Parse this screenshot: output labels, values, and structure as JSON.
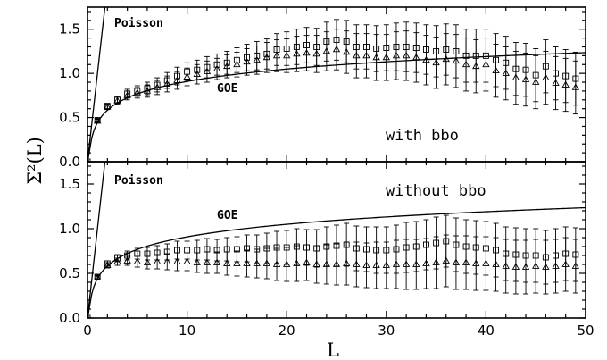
{
  "chart_data": [
    {
      "type": "scatter",
      "panel": "top",
      "xlim": [
        0,
        50
      ],
      "ylim": [
        0,
        1.75
      ],
      "xticks": [
        0,
        10,
        20,
        30,
        40,
        50
      ],
      "yticks": [
        0.0,
        0.5,
        1.0,
        1.5
      ],
      "xlabel": "L",
      "ylabel": "Σ²(L)",
      "annotation": "with bbo",
      "curve_labels": {
        "poisson": "Poisson",
        "goe": "GOE"
      },
      "curves": [
        {
          "name": "Poisson",
          "type": "line",
          "formula": "Sigma2 = L"
        },
        {
          "name": "GOE",
          "type": "line",
          "formula": "GOE number variance"
        }
      ],
      "series": [
        {
          "marker": "square",
          "x": [
            0,
            1,
            2,
            3,
            4,
            5,
            6,
            7,
            8,
            9,
            10,
            11,
            12,
            13,
            14,
            15,
            16,
            17,
            18,
            19,
            20,
            21,
            22,
            23,
            24,
            25,
            26,
            27,
            28,
            29,
            30,
            31,
            32,
            33,
            34,
            35,
            36,
            37,
            38,
            39,
            40,
            41,
            42,
            43,
            44,
            45,
            46,
            47,
            48,
            49
          ],
          "y": [
            0,
            0.47,
            0.63,
            0.7,
            0.77,
            0.8,
            0.83,
            0.87,
            0.92,
            0.97,
            1.02,
            1.04,
            1.07,
            1.1,
            1.12,
            1.15,
            1.18,
            1.2,
            1.22,
            1.27,
            1.28,
            1.3,
            1.32,
            1.3,
            1.36,
            1.38,
            1.36,
            1.3,
            1.3,
            1.28,
            1.29,
            1.3,
            1.3,
            1.29,
            1.27,
            1.25,
            1.27,
            1.25,
            1.2,
            1.2,
            1.2,
            1.15,
            1.12,
            1.05,
            1.04,
            0.98,
            1.08,
            1.0,
            0.97,
            0.94
          ],
          "err": [
            0,
            0.02,
            0.03,
            0.04,
            0.05,
            0.06,
            0.07,
            0.08,
            0.09,
            0.1,
            0.1,
            0.11,
            0.12,
            0.12,
            0.13,
            0.14,
            0.15,
            0.16,
            0.17,
            0.18,
            0.19,
            0.2,
            0.2,
            0.21,
            0.22,
            0.23,
            0.24,
            0.25,
            0.25,
            0.26,
            0.26,
            0.27,
            0.28,
            0.28,
            0.28,
            0.29,
            0.29,
            0.3,
            0.3,
            0.3,
            0.3,
            0.3,
            0.3,
            0.3,
            0.3,
            0.3,
            0.3,
            0.3,
            0.3,
            0.3
          ]
        },
        {
          "marker": "triangle",
          "x": [
            0,
            1,
            2,
            3,
            4,
            5,
            6,
            7,
            8,
            9,
            10,
            11,
            12,
            13,
            14,
            15,
            16,
            17,
            18,
            19,
            20,
            21,
            22,
            23,
            24,
            25,
            26,
            27,
            28,
            29,
            30,
            31,
            32,
            33,
            34,
            35,
            36,
            37,
            38,
            39,
            40,
            41,
            42,
            43,
            44,
            45,
            46,
            47,
            48,
            49
          ],
          "y": [
            0,
            0.46,
            0.62,
            0.69,
            0.75,
            0.78,
            0.8,
            0.84,
            0.88,
            0.92,
            0.96,
            0.99,
            1.02,
            1.05,
            1.08,
            1.1,
            1.13,
            1.15,
            1.18,
            1.2,
            1.2,
            1.22,
            1.23,
            1.22,
            1.25,
            1.27,
            1.24,
            1.2,
            1.2,
            1.18,
            1.18,
            1.2,
            1.2,
            1.18,
            1.15,
            1.12,
            1.16,
            1.14,
            1.1,
            1.08,
            1.1,
            1.03,
            1.0,
            0.95,
            0.93,
            0.9,
            0.95,
            0.89,
            0.87,
            0.84
          ],
          "err": [
            0,
            0.02,
            0.03,
            0.04,
            0.05,
            0.06,
            0.07,
            0.08,
            0.09,
            0.1,
            0.1,
            0.11,
            0.12,
            0.12,
            0.13,
            0.14,
            0.15,
            0.16,
            0.17,
            0.18,
            0.19,
            0.2,
            0.2,
            0.21,
            0.22,
            0.23,
            0.24,
            0.25,
            0.25,
            0.26,
            0.26,
            0.27,
            0.28,
            0.28,
            0.28,
            0.29,
            0.29,
            0.3,
            0.3,
            0.3,
            0.3,
            0.3,
            0.3,
            0.3,
            0.3,
            0.3,
            0.3,
            0.3,
            0.3,
            0.3
          ]
        }
      ]
    },
    {
      "type": "scatter",
      "panel": "bottom",
      "xlim": [
        0,
        50
      ],
      "ylim": [
        0,
        1.75
      ],
      "xticks": [
        0,
        10,
        20,
        30,
        40,
        50
      ],
      "yticks": [
        0.0,
        0.5,
        1.0,
        1.5
      ],
      "xlabel": "L",
      "ylabel": "Σ²(L)",
      "annotation": "without bbo",
      "curve_labels": {
        "poisson": "Poisson",
        "goe": "GOE"
      },
      "curves": [
        {
          "name": "Poisson",
          "type": "line",
          "formula": "Sigma2 = L"
        },
        {
          "name": "GOE",
          "type": "line",
          "formula": "GOE number variance"
        }
      ],
      "series": [
        {
          "marker": "square",
          "x": [
            0,
            1,
            2,
            3,
            4,
            5,
            6,
            7,
            8,
            9,
            10,
            11,
            12,
            13,
            14,
            15,
            16,
            17,
            18,
            19,
            20,
            21,
            22,
            23,
            24,
            25,
            26,
            27,
            28,
            29,
            30,
            31,
            32,
            33,
            34,
            35,
            36,
            37,
            38,
            39,
            40,
            41,
            42,
            43,
            44,
            45,
            46,
            47,
            48,
            49
          ],
          "y": [
            0,
            0.46,
            0.61,
            0.67,
            0.7,
            0.72,
            0.72,
            0.73,
            0.74,
            0.76,
            0.76,
            0.76,
            0.77,
            0.76,
            0.77,
            0.77,
            0.78,
            0.77,
            0.78,
            0.79,
            0.79,
            0.8,
            0.79,
            0.78,
            0.8,
            0.81,
            0.82,
            0.78,
            0.77,
            0.76,
            0.76,
            0.77,
            0.79,
            0.8,
            0.82,
            0.84,
            0.86,
            0.82,
            0.8,
            0.79,
            0.78,
            0.76,
            0.72,
            0.71,
            0.7,
            0.7,
            0.68,
            0.7,
            0.72,
            0.71
          ],
          "err": [
            0,
            0.02,
            0.03,
            0.04,
            0.05,
            0.06,
            0.07,
            0.08,
            0.09,
            0.1,
            0.1,
            0.11,
            0.12,
            0.12,
            0.13,
            0.14,
            0.15,
            0.16,
            0.17,
            0.18,
            0.19,
            0.2,
            0.2,
            0.21,
            0.22,
            0.23,
            0.24,
            0.25,
            0.25,
            0.26,
            0.26,
            0.27,
            0.28,
            0.28,
            0.28,
            0.29,
            0.29,
            0.3,
            0.3,
            0.3,
            0.3,
            0.3,
            0.3,
            0.3,
            0.3,
            0.3,
            0.3,
            0.3,
            0.3,
            0.3
          ]
        },
        {
          "marker": "triangle",
          "x": [
            0,
            1,
            2,
            3,
            4,
            5,
            6,
            7,
            8,
            9,
            10,
            11,
            12,
            13,
            14,
            15,
            16,
            17,
            18,
            19,
            20,
            21,
            22,
            23,
            24,
            25,
            26,
            27,
            28,
            29,
            30,
            31,
            32,
            33,
            34,
            35,
            36,
            37,
            38,
            39,
            40,
            41,
            42,
            43,
            44,
            45,
            46,
            47,
            48,
            49
          ],
          "y": [
            0,
            0.45,
            0.59,
            0.63,
            0.64,
            0.63,
            0.62,
            0.63,
            0.63,
            0.63,
            0.63,
            0.62,
            0.62,
            0.62,
            0.61,
            0.61,
            0.61,
            0.61,
            0.61,
            0.6,
            0.6,
            0.61,
            0.62,
            0.6,
            0.6,
            0.6,
            0.61,
            0.6,
            0.59,
            0.59,
            0.59,
            0.6,
            0.6,
            0.6,
            0.61,
            0.62,
            0.64,
            0.62,
            0.62,
            0.61,
            0.61,
            0.6,
            0.58,
            0.57,
            0.57,
            0.58,
            0.57,
            0.58,
            0.6,
            0.58
          ],
          "err": [
            0,
            0.02,
            0.03,
            0.04,
            0.05,
            0.06,
            0.07,
            0.08,
            0.09,
            0.1,
            0.1,
            0.11,
            0.12,
            0.12,
            0.13,
            0.14,
            0.15,
            0.16,
            0.17,
            0.18,
            0.19,
            0.2,
            0.2,
            0.21,
            0.22,
            0.23,
            0.24,
            0.25,
            0.25,
            0.26,
            0.26,
            0.27,
            0.28,
            0.28,
            0.28,
            0.29,
            0.29,
            0.3,
            0.3,
            0.3,
            0.3,
            0.3,
            0.3,
            0.3,
            0.3,
            0.3,
            0.3,
            0.3,
            0.3,
            0.3
          ]
        }
      ]
    }
  ]
}
